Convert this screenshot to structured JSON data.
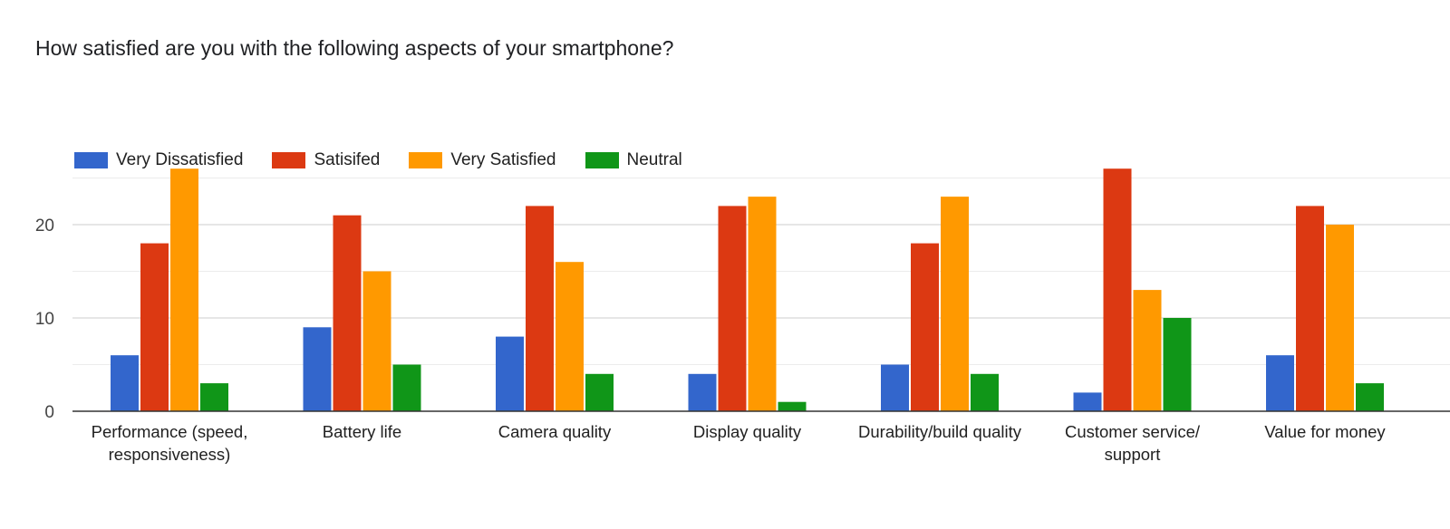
{
  "title": "How satisfied are you with the following aspects of your smartphone?",
  "chart_data": {
    "type": "bar",
    "title": "How satisfied are you with the following aspects of your smartphone?",
    "xlabel": "",
    "ylabel": "",
    "ylim": [
      0,
      26
    ],
    "yticks": [
      "0",
      "10",
      "20"
    ],
    "grid": true,
    "legend_position": "top-left",
    "categories": [
      [
        "Performance (speed,",
        "responsiveness)"
      ],
      [
        "Battery life"
      ],
      [
        "Camera quality"
      ],
      [
        "Display quality"
      ],
      [
        "Durability/build quality"
      ],
      [
        "Customer service/",
        "support"
      ],
      [
        "Value for money"
      ]
    ],
    "series": [
      {
        "name": "Very Dissatisfied",
        "color": "#3366cc",
        "values": [
          6,
          9,
          8,
          4,
          5,
          2,
          6
        ]
      },
      {
        "name": "Satisifed",
        "color": "#dc3912",
        "values": [
          18,
          21,
          22,
          22,
          18,
          26,
          22
        ]
      },
      {
        "name": "Very Satisfied",
        "color": "#ff9900",
        "values": [
          26,
          15,
          16,
          23,
          23,
          13,
          20
        ]
      },
      {
        "name": "Neutral",
        "color": "#109618",
        "values": [
          3,
          5,
          4,
          1,
          4,
          10,
          3
        ]
      }
    ]
  }
}
